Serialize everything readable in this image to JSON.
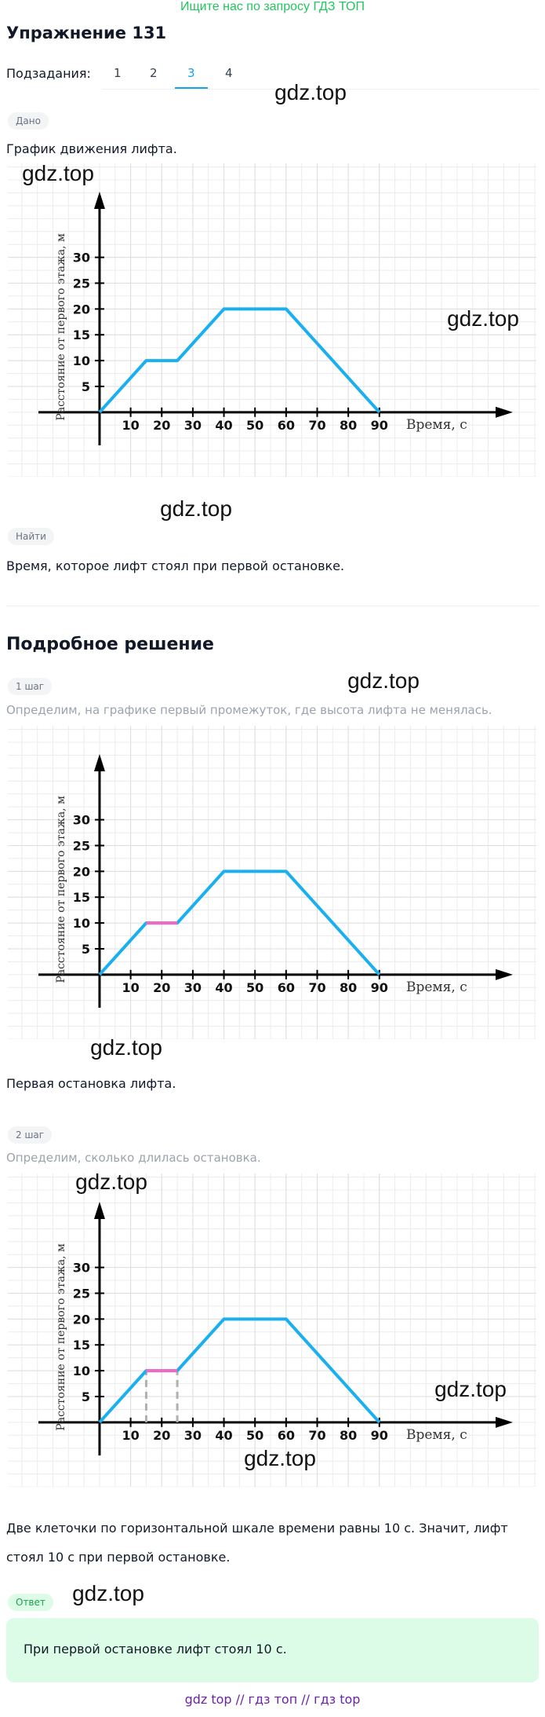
{
  "banner": "Ищите нас по запросу ГДЗ ТОП",
  "title": "Упражнение 131",
  "subtasks_label": "Подзадания:",
  "subtasks": [
    "1",
    "2",
    "3",
    "4"
  ],
  "given": {
    "badge": "Дано",
    "text": "График движения лифта."
  },
  "find": {
    "badge": "Найти",
    "text": "Время, которое лифт стоял при первой остановке."
  },
  "solution_title": "Подробное решение",
  "steps": [
    {
      "badge": "1 шаг",
      "text": "Определим, на графике первый промежуток, где высота лифта не менялась.",
      "after": "Первая остановка лифта."
    },
    {
      "badge": "2 шаг",
      "text": "Определим, сколько длилась остановка.",
      "after": [
        "Две клеточки по горизонтальной шкале времени равны 10 с. Значит, лифт",
        "стоял 10 с при первой остановке."
      ]
    }
  ],
  "answer": {
    "badge": "Ответ",
    "text": "При первой остановке лифт стоял 10 с."
  },
  "footer": [
    "gdz top",
    "гдз топ",
    "гдз top"
  ],
  "footer_sep": "//",
  "watermarks": [
    "gdz.top",
    "gdz.top",
    "gdz.top",
    "gdz.top",
    "gdz.top",
    "gdz.top",
    "gdz.top",
    "gdz.top",
    "gdz.top",
    "gdz.top"
  ],
  "chart_data": [
    {
      "type": "line",
      "xlabel": "Время, с",
      "ylabel": "Расстояние от первого этажа, м",
      "x": [
        0,
        15,
        25,
        40,
        60,
        90
      ],
      "series": [
        {
          "color": "#1ab0ef",
          "values": [
            0,
            10,
            10,
            20,
            20,
            0
          ]
        }
      ],
      "xlim": [
        -29.5,
        140.5
      ],
      "ylim": [
        -12.5,
        48.2
      ],
      "xticks": [
        10,
        20,
        30,
        40,
        50,
        60,
        70,
        80,
        90
      ],
      "yticks": [
        5,
        10,
        15,
        20,
        25,
        30
      ],
      "grid": true
    },
    {
      "type": "line",
      "xlabel": "Время, с",
      "ylabel": "Расстояние от первого этажа, м",
      "x": [
        0,
        15,
        25,
        40,
        60,
        90
      ],
      "series": [
        {
          "color": "#1ab0ef",
          "values": [
            0,
            10,
            10,
            20,
            20,
            0
          ]
        },
        {
          "color": "#f06bbf",
          "values": [
            null,
            10,
            10,
            null,
            null,
            null
          ]
        }
      ],
      "xlim": [
        -29.5,
        140.5
      ],
      "ylim": [
        -12.5,
        48.2
      ],
      "xticks": [
        10,
        20,
        30,
        40,
        50,
        60,
        70,
        80,
        90
      ],
      "yticks": [
        5,
        10,
        15,
        20,
        25,
        30
      ],
      "grid": true
    },
    {
      "type": "line",
      "xlabel": "Время, с",
      "ylabel": "Расстояние от первого этажа, м",
      "x": [
        0,
        15,
        25,
        40,
        60,
        90
      ],
      "series": [
        {
          "color": "#1ab0ef",
          "values": [
            0,
            10,
            10,
            20,
            20,
            0
          ]
        },
        {
          "color": "#f06bbf",
          "values": [
            null,
            10,
            10,
            null,
            null,
            null
          ]
        }
      ],
      "guides": [
        [
          15,
          10
        ],
        [
          25,
          10
        ]
      ],
      "guide_color": "#b0b0b0",
      "xlim": [
        -29.5,
        140.5
      ],
      "ylim": [
        -12.5,
        48.2
      ],
      "xticks": [
        10,
        20,
        30,
        40,
        50,
        60,
        70,
        80,
        90
      ],
      "yticks": [
        5,
        10,
        15,
        20,
        25,
        30
      ],
      "grid": true
    }
  ]
}
